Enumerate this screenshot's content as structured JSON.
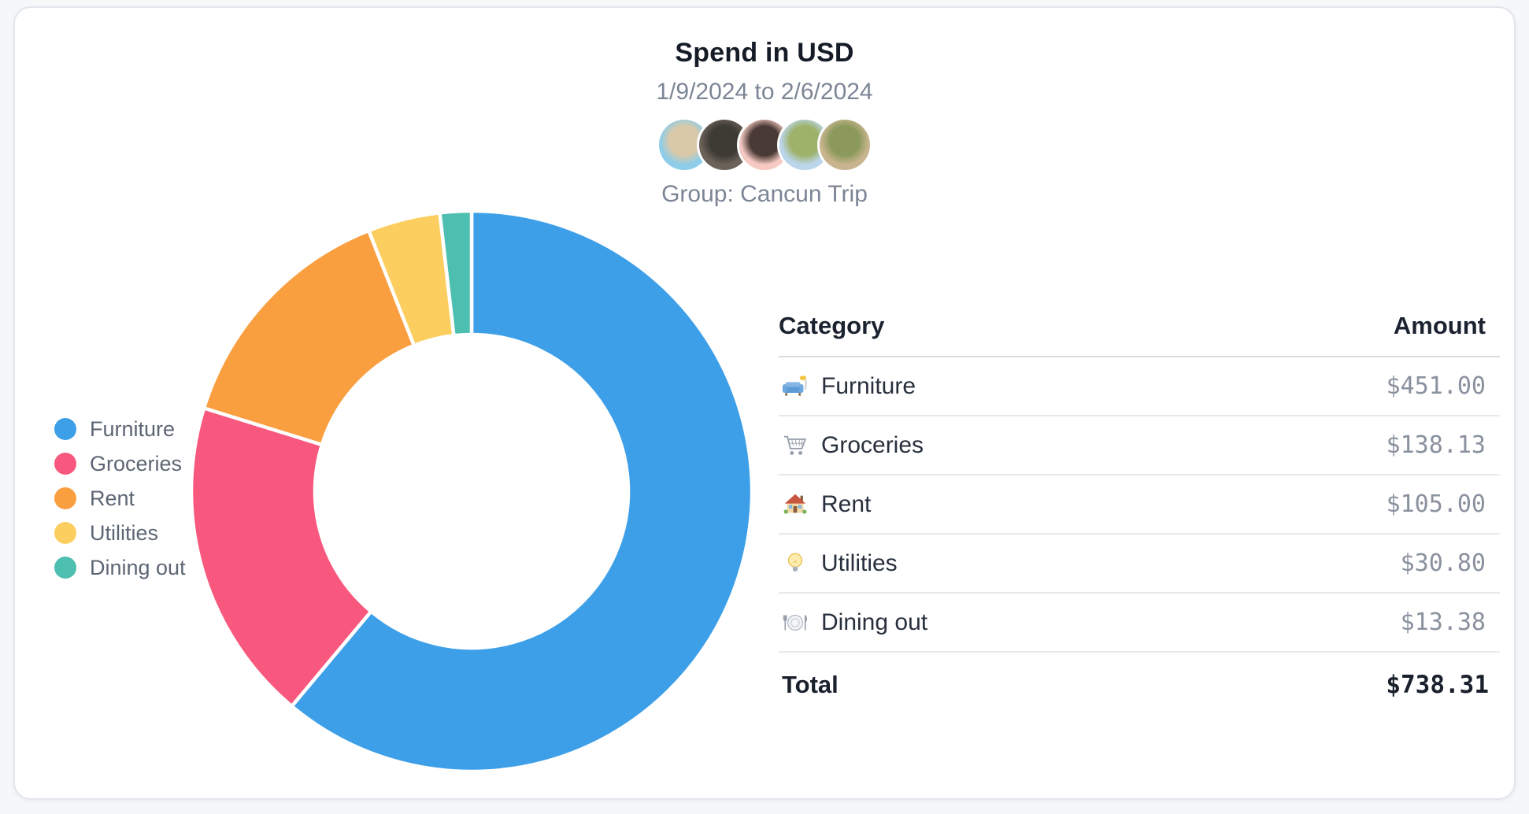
{
  "header": {
    "title": "Spend in USD",
    "date_range": "1/9/2024 to 2/6/2024",
    "group_label": "Group: Cancun Trip",
    "avatars": [
      {
        "name": "member-1",
        "colors": [
          "#8ECDE9",
          "#D9C9A8"
        ]
      },
      {
        "name": "member-2",
        "colors": [
          "#6B6258",
          "#3E3A34"
        ]
      },
      {
        "name": "member-3",
        "colors": [
          "#F6C9C3",
          "#4A3A35"
        ]
      },
      {
        "name": "member-4",
        "colors": [
          "#BBD6EA",
          "#9FB26A"
        ]
      },
      {
        "name": "member-5",
        "colors": [
          "#C8B48E",
          "#8B9A5C"
        ]
      }
    ]
  },
  "legend": {
    "items": [
      {
        "label": "Furniture",
        "color": "#3D9FE8"
      },
      {
        "label": "Groceries",
        "color": "#F9587E"
      },
      {
        "label": "Rent",
        "color": "#FA9F40"
      },
      {
        "label": "Utilities",
        "color": "#FBCE5F"
      },
      {
        "label": "Dining out",
        "color": "#4DBFB0"
      }
    ]
  },
  "table": {
    "headers": {
      "category": "Category",
      "amount": "Amount"
    },
    "rows": [
      {
        "icon": "couch-icon",
        "category": "Furniture",
        "amount": "$451.00"
      },
      {
        "icon": "cart-icon",
        "category": "Groceries",
        "amount": "$138.13"
      },
      {
        "icon": "house-icon",
        "category": "Rent",
        "amount": "$105.00"
      },
      {
        "icon": "bulb-icon",
        "category": "Utilities",
        "amount": "$30.80"
      },
      {
        "icon": "plate-icon",
        "category": "Dining out",
        "amount": "$13.38"
      }
    ],
    "total": {
      "label": "Total",
      "amount": "$738.31"
    }
  },
  "chart_data": {
    "type": "pie",
    "variant": "doughnut",
    "title": "Spend in USD",
    "subtitle": "1/9/2024 to 2/6/2024",
    "categories": [
      "Furniture",
      "Groceries",
      "Rent",
      "Utilities",
      "Dining out"
    ],
    "values": [
      451.0,
      138.13,
      105.0,
      30.8,
      13.38
    ],
    "total": 738.31,
    "colors": [
      "#3D9FE8",
      "#F9587E",
      "#FA9F40",
      "#FBCE5F",
      "#4DBFB0"
    ],
    "legend_position": "left",
    "start_angle_deg": -90,
    "direction": "clockwise",
    "inner_radius_ratio": 0.56,
    "slice_gap_color": "#FFFFFF"
  }
}
